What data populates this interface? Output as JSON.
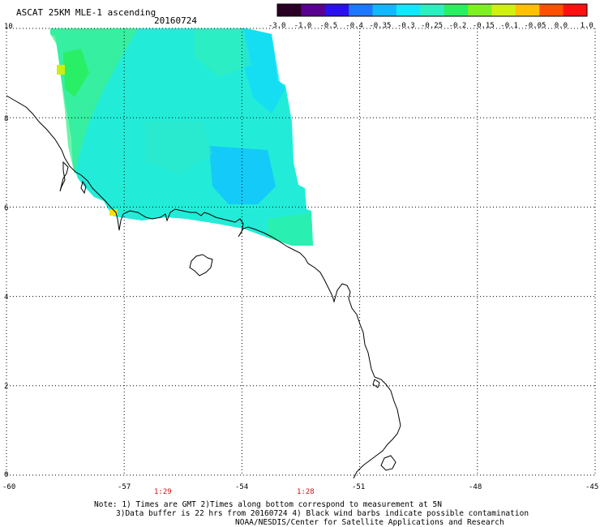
{
  "header": {
    "title": "ASCAT 25KM MLE-1 ascending",
    "date": "20160724"
  },
  "colorbar": {
    "ticks": [
      "-3.0",
      "-1.0",
      "-0.5",
      "-0.4",
      "-0.35",
      "-0.3",
      "-0.25",
      "-0.2",
      "-0.15",
      "-0.1",
      "-0.05",
      "0.0",
      "1.0"
    ],
    "colors": [
      "#2a0025",
      "#5a0090",
      "#2a10f0",
      "#1e78ff",
      "#10b8ff",
      "#10e8ff",
      "#2af0c0",
      "#28f060",
      "#7ff020",
      "#d0f010",
      "#ffc000",
      "#ff5000",
      "#ff1010"
    ]
  },
  "map": {
    "y_ticks": [
      "10",
      "8",
      "6",
      "4",
      "2",
      "0"
    ],
    "x_ticks": [
      "-60",
      "-57",
      "-54",
      "-51",
      "-48",
      "-45"
    ],
    "times": [
      {
        "label": "1:29"
      },
      {
        "label": "1:28"
      }
    ],
    "lat_range": [
      0,
      10
    ],
    "lon_range": [
      -60,
      -45
    ]
  },
  "notes": {
    "line1": "Note: 1) Times are GMT 2)Times along bottom correspond to measurement at 5N",
    "line2": "3)Data buffer is 22 hrs from 20160724 4) Black wind barbs indicate possible contamination",
    "line3": "NOAA/NESDIS/Center for Satellite Applications and Research"
  }
}
